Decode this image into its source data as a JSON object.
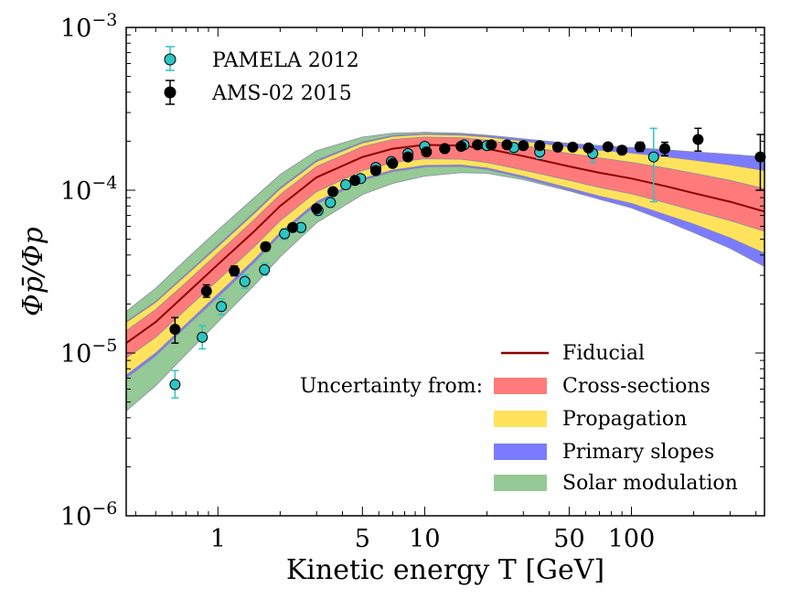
{
  "chart_data": {
    "type": "scatter",
    "xlabel": "Kinetic energy T [GeV]",
    "ylabel": "Φp̄/Φp",
    "xscale": "log",
    "yscale": "log",
    "xlim": [
      0.36,
      440
    ],
    "ylim": [
      1e-06,
      0.001
    ],
    "x_ticks": [
      {
        "value": 1,
        "label": "1"
      },
      {
        "value": 5,
        "label": "5"
      },
      {
        "value": 10,
        "label": "10"
      },
      {
        "value": 50,
        "label": "50"
      },
      {
        "value": 100,
        "label": "100"
      }
    ],
    "y_ticks": [
      {
        "value": 1e-06,
        "label": "10−6"
      },
      {
        "value": 1e-05,
        "label": "10−5"
      },
      {
        "value": 0.0001,
        "label": "10−4"
      },
      {
        "value": 0.001,
        "label": "10−3"
      }
    ],
    "grid": false,
    "legend": {
      "data_entries": [
        "PAMELA 2012",
        "AMS-02 2015"
      ],
      "uncertainty_heading": "Uncertainty from:",
      "band_entries": [
        "Fiducial",
        "Cross-sections",
        "Propagation",
        "Primary slopes",
        "Solar modulation"
      ]
    },
    "colors": {
      "pamela": "#2ec4c4",
      "ams": "#000000",
      "fiducial": "#8b0000",
      "cross_sections": "#ff7b7b",
      "propagation": "#ffe25c",
      "primary_slopes": "#7b7bff",
      "solar_modulation": "#95c995"
    },
    "bands": {
      "x": [
        0.36,
        0.5,
        0.7,
        1,
        1.5,
        2,
        3,
        5,
        7,
        10,
        15,
        20,
        30,
        50,
        70,
        100,
        150,
        200,
        300,
        440
      ],
      "fiducial": [
        1.15e-05,
        1.55e-05,
        2.3e-05,
        3.5e-05,
        5.6e-05,
        8e-05,
        0.00012,
        0.00016,
        0.00018,
        0.00019,
        0.000188,
        0.00018,
        0.000162,
        0.00014,
        0.000128,
        0.000118,
        0.000105,
        9.6e-05,
        8.5e-05,
        7.4e-05
      ],
      "cross_sections": {
        "low": [
          9.3e-06,
          1.25e-05,
          1.85e-05,
          2.8e-05,
          4.5e-05,
          6.5e-05,
          9.8e-05,
          0.000132,
          0.000148,
          0.000156,
          0.000155,
          0.000148,
          0.000133,
          0.000115,
          0.000104,
          9.5e-05,
          8.3e-05,
          7.5e-05,
          6.5e-05,
          5.6e-05
        ],
        "high": [
          1.37e-05,
          1.85e-05,
          2.7e-05,
          4.1e-05,
          6.6e-05,
          9.4e-05,
          0.00014,
          0.000185,
          0.000205,
          0.000212,
          0.00021,
          0.000203,
          0.000188,
          0.000168,
          0.000158,
          0.000148,
          0.000136,
          0.000127,
          0.000115,
          0.000102
        ]
      },
      "propagation": {
        "low": [
          7.3e-06,
          1e-05,
          1.5e-05,
          2.3e-05,
          3.75e-05,
          5.5e-05,
          8.5e-05,
          0.000118,
          0.000133,
          0.000142,
          0.000143,
          0.000137,
          0.000122,
          0.000103,
          9.2e-05,
          8.3e-05,
          7e-05,
          6.2e-05,
          5.1e-05,
          4.1e-05
        ],
        "high": [
          1.54e-05,
          2.05e-05,
          3e-05,
          4.5e-05,
          7.2e-05,
          0.000102,
          0.00015,
          0.000195,
          0.000214,
          0.00022,
          0.000218,
          0.000212,
          0.0002,
          0.000184,
          0.000176,
          0.000169,
          0.00016,
          0.000153,
          0.000143,
          0.000132
        ]
      },
      "primary_slopes": {
        "low": [
          7e-06,
          9.6e-06,
          1.45e-05,
          2.2e-05,
          3.6e-05,
          5.3e-05,
          8.2e-05,
          0.000115,
          0.00013,
          0.000139,
          0.00014,
          0.000134,
          0.000119,
          0.0001,
          8.8e-05,
          7.8e-05,
          6.4e-05,
          5.5e-05,
          4.4e-05,
          3.4e-05
        ],
        "high": [
          1.56e-05,
          2.08e-05,
          3.05e-05,
          4.6e-05,
          7.35e-05,
          0.000104,
          0.000153,
          0.000198,
          0.000217,
          0.000223,
          0.000221,
          0.000216,
          0.000206,
          0.000193,
          0.000187,
          0.000182,
          0.000176,
          0.000172,
          0.000166,
          0.00016
        ]
      },
      "solar_modulation": {
        "low": [
          4.4e-06,
          6.3e-06,
          9.8e-06,
          1.55e-05,
          2.6e-05,
          3.9e-05,
          6.3e-05,
          9.4e-05,
          0.00011,
          0.000122,
          0.000128,
          0.000127,
          0.000116,
          9.9e-05,
          8.8e-05,
          7.8e-05,
          6.4e-05,
          5.5e-05,
          4.4e-05,
          3.4e-05
        ],
        "high": [
          1.8e-05,
          2.5e-05,
          3.75e-05,
          5.7e-05,
          9e-05,
          0.000125,
          0.000175,
          0.000212,
          0.000224,
          0.000227,
          0.000224,
          0.000218,
          0.000207,
          0.000194,
          0.000188,
          0.000183,
          0.000177,
          0.000172,
          0.000166,
          0.00016
        ]
      }
    },
    "series": [
      {
        "name": "PAMELA 2012",
        "points": [
          {
            "x": 0.62,
            "y": 6.4e-06,
            "lo": 5.3e-06,
            "hi": 7.8e-06
          },
          {
            "x": 0.84,
            "y": 1.25e-05,
            "lo": 1.06e-05,
            "hi": 1.47e-05
          },
          {
            "x": 1.04,
            "y": 1.93e-05,
            "lo": 1.72e-05,
            "hi": 2.15e-05
          },
          {
            "x": 1.35,
            "y": 2.75e-05,
            "lo": 2.5e-05,
            "hi": 3.02e-05
          },
          {
            "x": 1.68,
            "y": 3.25e-05,
            "lo": 3e-05,
            "hi": 3.55e-05
          },
          {
            "x": 2.1,
            "y": 5.4e-05,
            "lo": 5e-05,
            "hi": 5.8e-05
          },
          {
            "x": 2.52,
            "y": 5.9e-05,
            "lo": 5.5e-05,
            "hi": 6.3e-05
          },
          {
            "x": 3.05,
            "y": 7.5e-05,
            "lo": 7e-05,
            "hi": 8e-05
          },
          {
            "x": 3.5,
            "y": 8.4e-05,
            "lo": 7.9e-05,
            "hi": 8.9e-05
          },
          {
            "x": 4.15,
            "y": 0.000108,
            "lo": 0.000102,
            "hi": 0.000114
          },
          {
            "x": 4.9,
            "y": 0.000118,
            "lo": 0.000112,
            "hi": 0.000124
          },
          {
            "x": 5.8,
            "y": 0.000138,
            "lo": 0.000131,
            "hi": 0.000145
          },
          {
            "x": 6.9,
            "y": 0.00015,
            "lo": 0.000143,
            "hi": 0.000157
          },
          {
            "x": 8.3,
            "y": 0.000168,
            "lo": 0.00016,
            "hi": 0.000176
          },
          {
            "x": 10.0,
            "y": 0.000186,
            "lo": 0.000177,
            "hi": 0.000195
          },
          {
            "x": 12.5,
            "y": 0.00018,
            "lo": 0.00017,
            "hi": 0.00019
          },
          {
            "x": 15.5,
            "y": 0.00019,
            "lo": 0.00018,
            "hi": 0.0002
          },
          {
            "x": 20.0,
            "y": 0.000188,
            "lo": 0.000177,
            "hi": 0.000199
          },
          {
            "x": 27.0,
            "y": 0.000183,
            "lo": 0.00017,
            "hi": 0.000196
          },
          {
            "x": 36.0,
            "y": 0.000172,
            "lo": 0.000157,
            "hi": 0.000188
          },
          {
            "x": 65.0,
            "y": 0.000168,
            "lo": 0.000149,
            "hi": 0.000188
          },
          {
            "x": 128.0,
            "y": 0.00016,
            "lo": 8.5e-05,
            "hi": 0.00024
          }
        ]
      },
      {
        "name": "AMS-02 2015",
        "points": [
          {
            "x": 0.62,
            "y": 1.4e-05,
            "lo": 1.15e-05,
            "hi": 1.65e-05
          },
          {
            "x": 0.88,
            "y": 2.4e-05,
            "lo": 2.2e-05,
            "hi": 2.62e-05
          },
          {
            "x": 1.2,
            "y": 3.2e-05,
            "lo": 2.98e-05,
            "hi": 3.42e-05
          },
          {
            "x": 1.7,
            "y": 4.5e-05,
            "lo": 4.25e-05,
            "hi": 4.75e-05
          },
          {
            "x": 2.3,
            "y": 5.9e-05,
            "lo": 5.6e-05,
            "hi": 6.2e-05
          },
          {
            "x": 3.0,
            "y": 7.7e-05,
            "lo": 7.35e-05,
            "hi": 8.05e-05
          },
          {
            "x": 3.6,
            "y": 9.8e-05,
            "lo": 9.4e-05,
            "hi": 0.000102
          },
          {
            "x": 4.6,
            "y": 0.000115,
            "lo": 0.00011,
            "hi": 0.00012
          },
          {
            "x": 5.8,
            "y": 0.000132,
            "lo": 0.000127,
            "hi": 0.000137
          },
          {
            "x": 7.0,
            "y": 0.000146,
            "lo": 0.000141,
            "hi": 0.000151
          },
          {
            "x": 8.3,
            "y": 0.00016,
            "lo": 0.000155,
            "hi": 0.000165
          },
          {
            "x": 10.2,
            "y": 0.000172,
            "lo": 0.000166,
            "hi": 0.000178
          },
          {
            "x": 12.5,
            "y": 0.00018,
            "lo": 0.000174,
            "hi": 0.000186
          },
          {
            "x": 15.0,
            "y": 0.000186,
            "lo": 0.00018,
            "hi": 0.000192
          },
          {
            "x": 18.0,
            "y": 0.00019,
            "lo": 0.000184,
            "hi": 0.000196
          },
          {
            "x": 21.0,
            "y": 0.00019,
            "lo": 0.000184,
            "hi": 0.000196
          },
          {
            "x": 25.0,
            "y": 0.00019,
            "lo": 0.000184,
            "hi": 0.000196
          },
          {
            "x": 30.0,
            "y": 0.000188,
            "lo": 0.000182,
            "hi": 0.000194
          },
          {
            "x": 36.0,
            "y": 0.000188,
            "lo": 0.000182,
            "hi": 0.000194
          },
          {
            "x": 44.0,
            "y": 0.000184,
            "lo": 0.000178,
            "hi": 0.00019
          },
          {
            "x": 52.0,
            "y": 0.000184,
            "lo": 0.000177,
            "hi": 0.000191
          },
          {
            "x": 62.0,
            "y": 0.000182,
            "lo": 0.000175,
            "hi": 0.000189
          },
          {
            "x": 77.0,
            "y": 0.000185,
            "lo": 0.000177,
            "hi": 0.000193
          },
          {
            "x": 90.0,
            "y": 0.000176,
            "lo": 0.000167,
            "hi": 0.000186
          },
          {
            "x": 110.0,
            "y": 0.000185,
            "lo": 0.000173,
            "hi": 0.000197
          },
          {
            "x": 145.0,
            "y": 0.00018,
            "lo": 0.000163,
            "hi": 0.000197
          },
          {
            "x": 210.0,
            "y": 0.000205,
            "lo": 0.000174,
            "hi": 0.00024
          },
          {
            "x": 420.0,
            "y": 0.00016,
            "lo": 0.0001,
            "hi": 0.00022
          }
        ]
      }
    ]
  }
}
